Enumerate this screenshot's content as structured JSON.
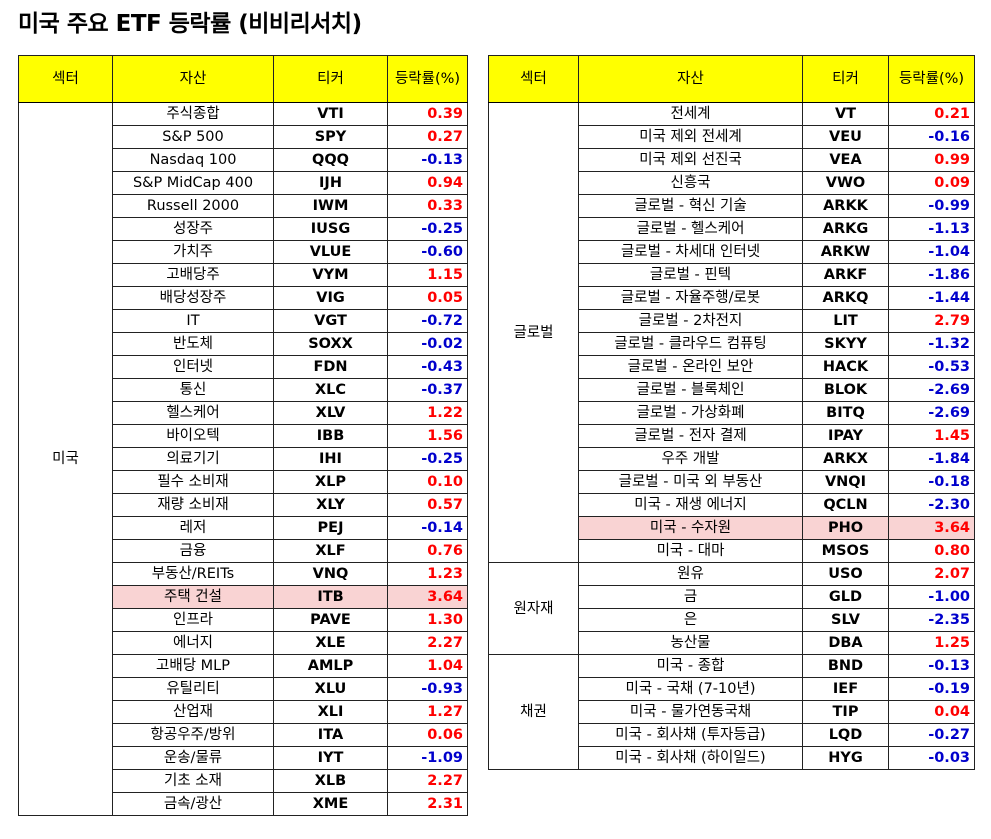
{
  "title": "미국 주요 ETF 등락률 (비비리서치)",
  "colors": {
    "positive": "#ff0000",
    "negative": "#0000cc",
    "header_bg": "#ffff00",
    "highlight_bg": "#f9d3d3"
  },
  "headers": {
    "sector": "섹터",
    "asset": "자산",
    "ticker": "티커",
    "change": "등락률(%)"
  },
  "left_groups": [
    {
      "sector": "미국",
      "rows": [
        {
          "asset": "주식종합",
          "ticker": "VTI",
          "change": "0.39"
        },
        {
          "asset": "S&P 500",
          "ticker": "SPY",
          "change": "0.27"
        },
        {
          "asset": "Nasdaq 100",
          "ticker": "QQQ",
          "change": "-0.13"
        },
        {
          "asset": "S&P MidCap 400",
          "ticker": "IJH",
          "change": "0.94"
        },
        {
          "asset": "Russell 2000",
          "ticker": "IWM",
          "change": "0.33"
        },
        {
          "asset": "성장주",
          "ticker": "IUSG",
          "change": "-0.25"
        },
        {
          "asset": "가치주",
          "ticker": "VLUE",
          "change": "-0.60"
        },
        {
          "asset": "고배당주",
          "ticker": "VYM",
          "change": "1.15"
        },
        {
          "asset": "배당성장주",
          "ticker": "VIG",
          "change": "0.05"
        },
        {
          "asset": "IT",
          "ticker": "VGT",
          "change": "-0.72"
        },
        {
          "asset": "반도체",
          "ticker": "SOXX",
          "change": "-0.02"
        },
        {
          "asset": "인터넷",
          "ticker": "FDN",
          "change": "-0.43"
        },
        {
          "asset": "통신",
          "ticker": "XLC",
          "change": "-0.37"
        },
        {
          "asset": "헬스케어",
          "ticker": "XLV",
          "change": "1.22"
        },
        {
          "asset": "바이오텍",
          "ticker": "IBB",
          "change": "1.56"
        },
        {
          "asset": "의료기기",
          "ticker": "IHI",
          "change": "-0.25"
        },
        {
          "asset": "필수 소비재",
          "ticker": "XLP",
          "change": "0.10"
        },
        {
          "asset": "재량 소비재",
          "ticker": "XLY",
          "change": "0.57"
        },
        {
          "asset": "레저",
          "ticker": "PEJ",
          "change": "-0.14"
        },
        {
          "asset": "금융",
          "ticker": "XLF",
          "change": "0.76"
        },
        {
          "asset": "부동산/REITs",
          "ticker": "VNQ",
          "change": "1.23"
        },
        {
          "asset": "주택 건설",
          "ticker": "ITB",
          "change": "3.64",
          "highlight": true
        },
        {
          "asset": "인프라",
          "ticker": "PAVE",
          "change": "1.30"
        },
        {
          "asset": "에너지",
          "ticker": "XLE",
          "change": "2.27"
        },
        {
          "asset": "고배당 MLP",
          "ticker": "AMLP",
          "change": "1.04"
        },
        {
          "asset": "유틸리티",
          "ticker": "XLU",
          "change": "-0.93"
        },
        {
          "asset": "산업재",
          "ticker": "XLI",
          "change": "1.27"
        },
        {
          "asset": "항공우주/방위",
          "ticker": "ITA",
          "change": "0.06"
        },
        {
          "asset": "운송/물류",
          "ticker": "IYT",
          "change": "-1.09"
        },
        {
          "asset": "기초 소재",
          "ticker": "XLB",
          "change": "2.27"
        },
        {
          "asset": "금속/광산",
          "ticker": "XME",
          "change": "2.31"
        }
      ]
    }
  ],
  "right_groups": [
    {
      "sector": "글로벌",
      "rows": [
        {
          "asset": "전세계",
          "ticker": "VT",
          "change": "0.21"
        },
        {
          "asset": "미국 제외 전세계",
          "ticker": "VEU",
          "change": "-0.16"
        },
        {
          "asset": "미국 제외 선진국",
          "ticker": "VEA",
          "change": "0.99"
        },
        {
          "asset": "신흥국",
          "ticker": "VWO",
          "change": "0.09"
        },
        {
          "asset": "글로벌 - 혁신 기술",
          "ticker": "ARKK",
          "change": "-0.99"
        },
        {
          "asset": "글로벌 - 헬스케어",
          "ticker": "ARKG",
          "change": "-1.13"
        },
        {
          "asset": "글로벌 - 차세대 인터넷",
          "ticker": "ARKW",
          "change": "-1.04"
        },
        {
          "asset": "글로벌 - 핀텍",
          "ticker": "ARKF",
          "change": "-1.86"
        },
        {
          "asset": "글로벌 - 자율주행/로봇",
          "ticker": "ARKQ",
          "change": "-1.44"
        },
        {
          "asset": "글로벌 - 2차전지",
          "ticker": "LIT",
          "change": "2.79"
        },
        {
          "asset": "글로벌 - 클라우드 컴퓨팅",
          "ticker": "SKYY",
          "change": "-1.32"
        },
        {
          "asset": "글로벌 - 온라인 보안",
          "ticker": "HACK",
          "change": "-0.53"
        },
        {
          "asset": "글로벌 - 블록체인",
          "ticker": "BLOK",
          "change": "-2.69"
        },
        {
          "asset": "글로벌 - 가상화폐",
          "ticker": "BITQ",
          "change": "-2.69"
        },
        {
          "asset": "글로벌 - 전자 결제",
          "ticker": "IPAY",
          "change": "1.45"
        },
        {
          "asset": "우주 개발",
          "ticker": "ARKX",
          "change": "-1.84"
        },
        {
          "asset": "글로벌 - 미국 외 부동산",
          "ticker": "VNQI",
          "change": "-0.18"
        },
        {
          "asset": "미국 - 재생 에너지",
          "ticker": "QCLN",
          "change": "-2.30"
        },
        {
          "asset": "미국 - 수자원",
          "ticker": "PHO",
          "change": "3.64",
          "highlight": true
        },
        {
          "asset": "미국 - 대마",
          "ticker": "MSOS",
          "change": "0.80"
        }
      ]
    },
    {
      "sector": "원자재",
      "rows": [
        {
          "asset": "원유",
          "ticker": "USO",
          "change": "2.07"
        },
        {
          "asset": "금",
          "ticker": "GLD",
          "change": "-1.00"
        },
        {
          "asset": "은",
          "ticker": "SLV",
          "change": "-2.35"
        },
        {
          "asset": "농산물",
          "ticker": "DBA",
          "change": "1.25"
        }
      ]
    },
    {
      "sector": "채권",
      "rows": [
        {
          "asset": "미국 - 종합",
          "ticker": "BND",
          "change": "-0.13"
        },
        {
          "asset": "미국 - 국채 (7-10년)",
          "ticker": "IEF",
          "change": "-0.19"
        },
        {
          "asset": "미국 - 물가연동국채",
          "ticker": "TIP",
          "change": "0.04"
        },
        {
          "asset": "미국 - 회사채 (투자등급)",
          "ticker": "LQD",
          "change": "-0.27"
        },
        {
          "asset": "미국 - 회사채 (하이일드)",
          "ticker": "HYG",
          "change": "-0.03"
        }
      ]
    }
  ]
}
